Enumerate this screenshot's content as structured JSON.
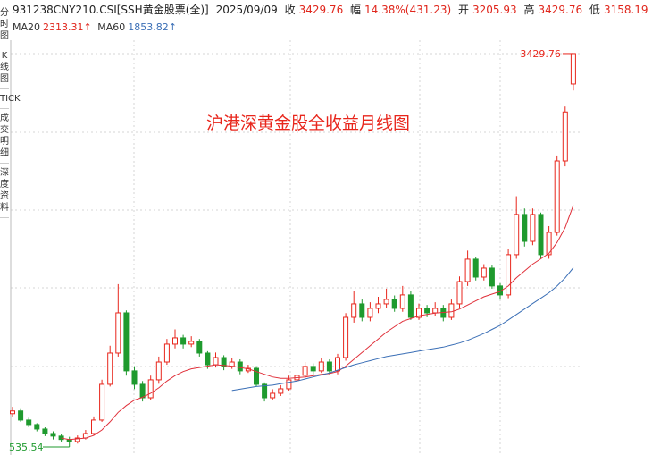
{
  "header": {
    "code": "931238CNY210.CSI[SSH黄金股票(全)]",
    "date": "2025/09/09",
    "close_label": "收",
    "close": "3429.76",
    "change_label": "幅",
    "change": "14.38%(431.23)",
    "open_label": "开",
    "open": "3205.93",
    "high_label": "高",
    "high": "3429.76",
    "low_label": "低",
    "low": "3158.19",
    "ma20_label": "MA20",
    "ma20_value": "2313.31↑",
    "ma60_label": "MA60",
    "ma60_value": "1853.82↑"
  },
  "sidebar": [
    "分时图",
    "K线图",
    "TICK",
    "成交明细",
    "深度资料"
  ],
  "chart_data": {
    "type": "candlestick",
    "title": "沪港深黄金股全收益月线图",
    "up_color": "#e8261c",
    "down_color": "#1f9a2e",
    "ylim": [
      476,
      3528
    ],
    "max_label": 3429.76,
    "min_label": 535.54,
    "open": [
      780,
      800,
      733,
      700,
      667,
      634,
      615,
      590,
      575,
      601,
      634,
      733,
      996,
      1226,
      1522,
      1095,
      996,
      897,
      1029,
      1160,
      1292,
      1338,
      1292,
      1312,
      1226,
      1140,
      1193,
      1128,
      1160,
      1095,
      1114,
      996,
      897,
      930,
      963,
      1029,
      1062,
      1128,
      1095,
      1160,
      1095,
      1193,
      1489,
      1588,
      1489,
      1555,
      1588,
      1621,
      1555,
      1654,
      1489,
      1555,
      1522,
      1555,
      1489,
      1588,
      1752,
      1917,
      1785,
      1851,
      1720,
      1654,
      1950,
      2246,
      2048,
      2246,
      1950,
      2114,
      2640,
      3205.93
    ],
    "high": [
      830,
      820,
      750,
      710,
      680,
      650,
      630,
      610,
      620,
      660,
      760,
      1030,
      1280,
      1733,
      1540,
      1130,
      1020,
      1060,
      1200,
      1330,
      1400,
      1360,
      1350,
      1330,
      1240,
      1230,
      1210,
      1190,
      1180,
      1140,
      1130,
      1010,
      960,
      990,
      1060,
      1100,
      1160,
      1150,
      1190,
      1180,
      1220,
      1520,
      1680,
      1620,
      1600,
      1640,
      1700,
      1650,
      1720,
      1680,
      1590,
      1580,
      1600,
      1580,
      1620,
      1790,
      1980,
      1930,
      1880,
      1870,
      1740,
      1990,
      2380,
      2290,
      2290,
      2260,
      2160,
      2680,
      3040,
      3429.76
    ],
    "low": [
      760,
      720,
      680,
      650,
      615,
      590,
      570,
      535.54,
      560,
      590,
      620,
      720,
      980,
      1200,
      1060,
      960,
      870,
      880,
      1000,
      1140,
      1260,
      1260,
      1270,
      1200,
      1110,
      1120,
      1100,
      1110,
      1070,
      1080,
      980,
      870,
      880,
      910,
      950,
      1010,
      1040,
      1060,
      1080,
      1070,
      1070,
      1170,
      1450,
      1460,
      1460,
      1520,
      1560,
      1530,
      1530,
      1470,
      1470,
      1490,
      1500,
      1460,
      1470,
      1560,
      1720,
      1760,
      1760,
      1700,
      1620,
      1630,
      1920,
      2010,
      2020,
      1920,
      1920,
      2090,
      2600,
      3158.19
    ],
    "close": [
      800,
      733,
      700,
      667,
      634,
      615,
      590,
      575,
      601,
      634,
      733,
      996,
      1226,
      1522,
      1095,
      996,
      897,
      1029,
      1160,
      1292,
      1338,
      1292,
      1312,
      1226,
      1140,
      1193,
      1128,
      1160,
      1095,
      1114,
      996,
      897,
      930,
      963,
      1029,
      1062,
      1128,
      1095,
      1160,
      1095,
      1193,
      1489,
      1588,
      1489,
      1555,
      1588,
      1621,
      1555,
      1654,
      1489,
      1555,
      1522,
      1555,
      1489,
      1588,
      1752,
      1917,
      1785,
      1851,
      1720,
      1654,
      1950,
      2246,
      2048,
      2246,
      1950,
      2114,
      2640,
      3000,
      3429.76
    ],
    "series": [
      {
        "name": "MA20",
        "color": "#e0303a",
        "values": [
          null,
          null,
          null,
          null,
          null,
          null,
          600,
          590,
          595,
          600,
          620,
          660,
          720,
          790,
          840,
          880,
          900,
          930,
          970,
          1020,
          1060,
          1090,
          1110,
          1120,
          1130,
          1140,
          1135,
          1130,
          1120,
          1110,
          1090,
          1070,
          1050,
          1040,
          1040,
          1045,
          1050,
          1060,
          1070,
          1075,
          1090,
          1130,
          1180,
          1230,
          1280,
          1330,
          1380,
          1420,
          1460,
          1480,
          1500,
          1510,
          1520,
          1525,
          1530,
          1550,
          1580,
          1610,
          1640,
          1660,
          1680,
          1720,
          1780,
          1830,
          1880,
          1920,
          1960,
          2040,
          2150,
          2313.31
        ]
      },
      {
        "name": "MA60",
        "color": "#3b6fb6",
        "values": [
          null,
          null,
          null,
          null,
          null,
          null,
          null,
          null,
          null,
          null,
          null,
          null,
          null,
          null,
          null,
          null,
          null,
          null,
          null,
          null,
          null,
          null,
          null,
          null,
          null,
          null,
          null,
          950,
          960,
          970,
          980,
          985,
          990,
          1000,
          1010,
          1020,
          1035,
          1050,
          1065,
          1080,
          1100,
          1120,
          1140,
          1155,
          1170,
          1185,
          1200,
          1210,
          1220,
          1230,
          1240,
          1250,
          1260,
          1270,
          1285,
          1300,
          1320,
          1345,
          1370,
          1400,
          1430,
          1470,
          1510,
          1550,
          1590,
          1630,
          1670,
          1720,
          1780,
          1853.82
        ]
      }
    ]
  }
}
